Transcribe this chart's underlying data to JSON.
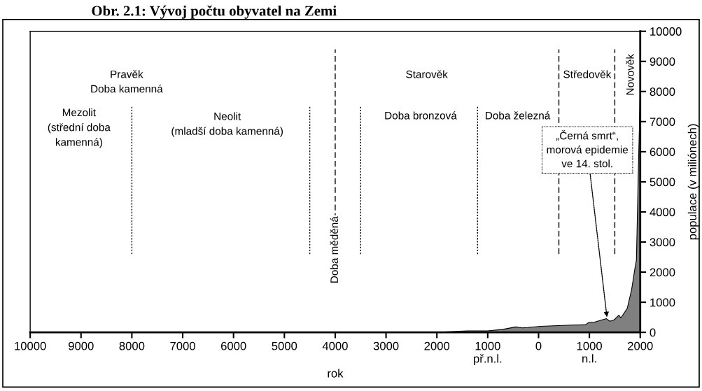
{
  "chart_data": {
    "type": "area",
    "title": "Obr. 2.1: Vývoj počtu obyvatel na Zemi",
    "xlabel": "rok",
    "y2label": "populace (v miliónech)",
    "series": [
      {
        "color": "#808080",
        "x": [
          -10000,
          -8000,
          -5000,
          -4000,
          -3000,
          -2000,
          -1400,
          -1000,
          -700,
          -450,
          -320,
          -220,
          40,
          650,
          920,
          990,
          1100,
          1335,
          1400,
          1485,
          1580,
          1620,
          1745,
          1830,
          1900,
          1925,
          1966,
          2000
        ],
        "values": [
          0,
          0,
          0,
          0,
          0,
          0,
          50,
          50,
          100,
          180,
          150,
          160,
          200,
          240,
          250,
          330,
          340,
          455,
          370,
          410,
          570,
          480,
          800,
          1410,
          2170,
          2400,
          5600,
          8000
        ]
      }
    ],
    "xlim": [
      -10000,
      2000
    ],
    "xticks": [
      {
        "value": -10000,
        "label": "10000"
      },
      {
        "value": -9000,
        "label": "9000"
      },
      {
        "value": -8000,
        "label": "8000"
      },
      {
        "value": -7000,
        "label": "7000"
      },
      {
        "value": -6000,
        "label": "6000"
      },
      {
        "value": -5000,
        "label": "5000"
      },
      {
        "value": -4000,
        "label": "4000"
      },
      {
        "value": -3000,
        "label": "3000"
      },
      {
        "value": -2000,
        "label": "2000"
      },
      {
        "value": -1000,
        "label": "1000\npř.n.l."
      },
      0,
      {
        "value": 1000,
        "label": "1000\nn.l."
      },
      2000
    ],
    "ylim": [
      0,
      10000
    ],
    "yticks": [
      0,
      1000,
      2000,
      3000,
      4000,
      5000,
      6000,
      7000,
      8000,
      9000,
      10000
    ],
    "ref_lines": [
      {
        "axis": "x",
        "value": -8000,
        "line_style": "dotted",
        "color": "#000000"
      },
      {
        "axis": "x",
        "value": -4500,
        "line_style": "dotted",
        "color": "#000000"
      },
      {
        "axis": "x",
        "value": -4000,
        "line_style": "dashed",
        "color": "#000000"
      },
      {
        "axis": "x",
        "value": -3500,
        "line_style": "dotted",
        "color": "#000000"
      },
      {
        "axis": "x",
        "value": -1200,
        "line_style": "dotted",
        "color": "#000000"
      },
      {
        "axis": "x",
        "value": 400,
        "line_style": "dashed",
        "color": "#000000"
      },
      {
        "axis": "x",
        "value": 1500,
        "line_style": "dashed",
        "color": "#000000"
      }
    ],
    "annotations": [
      "Pravěk\nDoba kamenná",
      "Mezolit\n(střední doba\nkamenná)",
      "Neolit\n(mladší doba kamenná)",
      "Doba měděná",
      "Starověk",
      "Doba bronzová",
      "Doba železná",
      "Středověk",
      "Novověk",
      {
        "text": "„Černá smrt“,\nmorová epidemie\nve 14. stol.",
        "x": 1350,
        "y": 440
      }
    ]
  }
}
